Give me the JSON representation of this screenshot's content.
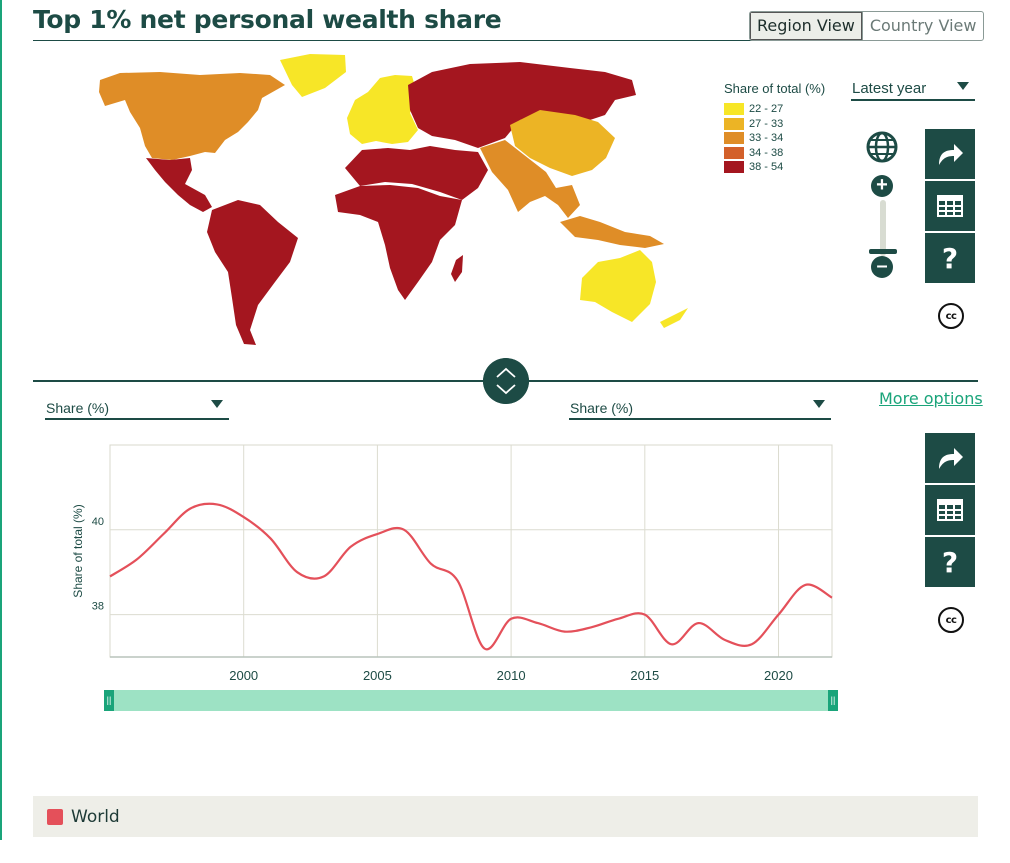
{
  "header": {
    "title": "Top 1% net personal wealth share",
    "view_tabs": [
      "Region View",
      "Country View"
    ],
    "active_tab": "Region View"
  },
  "map": {
    "legend_title": "Share of total (%)",
    "legend": [
      {
        "label": "22 - 27",
        "color": "#f7e627"
      },
      {
        "label": "27 - 33",
        "color": "#ecb425"
      },
      {
        "label": "33 - 34",
        "color": "#df8d27"
      },
      {
        "label": "34 - 38",
        "color": "#d3602a"
      },
      {
        "label": "38 - 54",
        "color": "#a4161f"
      }
    ],
    "year_select": "Latest year",
    "icons": [
      "globe-icon",
      "zoom-in-icon",
      "zoom-out-icon",
      "share-icon",
      "table-icon",
      "help-icon",
      "cc-icon"
    ]
  },
  "controls": {
    "left_select": "Share (%)",
    "right_select": "Share (%)",
    "more_options": "More options",
    "help_label": "?",
    "cc_label": "cc"
  },
  "chart_data": {
    "type": "line",
    "ylabel": "Share of total (%)",
    "xlabel": "",
    "xlim": [
      1995,
      2022
    ],
    "ylim": [
      37,
      42
    ],
    "x_ticks": [
      2000,
      2005,
      2010,
      2015,
      2020
    ],
    "y_ticks": [
      38,
      40
    ],
    "grid": true,
    "series": [
      {
        "name": "World",
        "color": "#e4505a",
        "x": [
          1995,
          1996,
          1997,
          1998,
          1999,
          2000,
          2001,
          2002,
          2003,
          2004,
          2005,
          2006,
          2007,
          2008,
          2009,
          2010,
          2011,
          2012,
          2013,
          2014,
          2015,
          2016,
          2017,
          2018,
          2019,
          2020,
          2021,
          2022
        ],
        "values": [
          38.9,
          39.3,
          39.9,
          40.5,
          40.6,
          40.3,
          39.8,
          39.0,
          38.9,
          39.6,
          39.9,
          40.0,
          39.2,
          38.8,
          37.2,
          37.9,
          37.8,
          37.6,
          37.7,
          37.9,
          38.0,
          37.3,
          37.8,
          37.4,
          37.3,
          38.0,
          38.7,
          38.4
        ]
      }
    ]
  }
}
